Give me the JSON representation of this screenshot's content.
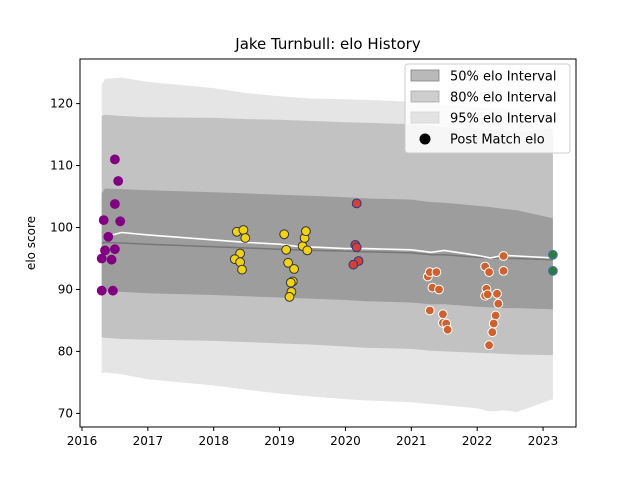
{
  "chart_data": {
    "type": "scatter",
    "title": "Jake Turnbull: elo History",
    "xlabel": "",
    "ylabel": "elo score",
    "xlim": [
      2015.97,
      2023.5
    ],
    "ylim": [
      67.8,
      127.2
    ],
    "xticks": [
      2016,
      2017,
      2018,
      2019,
      2020,
      2021,
      2022,
      2023
    ],
    "yticks": [
      70,
      80,
      90,
      100,
      110,
      120
    ],
    "grid": false,
    "legend_position": "top-right",
    "legend": [
      {
        "label": "50% elo Interval",
        "kind": "band",
        "color": "#7f7f7f",
        "opacity": 0.55
      },
      {
        "label": "80% elo Interval",
        "kind": "band",
        "color": "#a6a6a6",
        "opacity": 0.55
      },
      {
        "label": "95% elo Interval",
        "kind": "band",
        "color": "#d3d3d3",
        "opacity": 0.6
      },
      {
        "label": "Post Match elo",
        "kind": "marker",
        "color": "#000000"
      }
    ],
    "bands": {
      "x": [
        2016.3,
        2016.35,
        2016.6,
        2017.0,
        2018.0,
        2018.5,
        2019.0,
        2019.5,
        2020.0,
        2020.3,
        2021.0,
        2021.3,
        2021.5,
        2022.0,
        2022.2,
        2022.4,
        2022.6,
        2023.15
      ],
      "center": [
        97.5,
        97.6,
        97.5,
        97.3,
        96.9,
        96.7,
        96.5,
        96.3,
        96.2,
        96.1,
        95.9,
        95.6,
        95.6,
        95.2,
        95.1,
        95.0,
        95.0,
        94.8
      ],
      "p50_low": [
        89.5,
        89.7,
        89.6,
        89.4,
        89.1,
        88.9,
        88.7,
        88.5,
        88.3,
        88.1,
        87.9,
        87.6,
        87.6,
        87.2,
        87.1,
        87.0,
        87.0,
        86.8
      ],
      "p50_high": [
        105.5,
        106.3,
        106.2,
        106.0,
        105.7,
        105.5,
        105.3,
        105.1,
        104.9,
        104.7,
        104.5,
        104.1,
        104.0,
        103.5,
        103.3,
        103.0,
        102.8,
        101.5
      ],
      "p80_low": [
        82.3,
        82.2,
        82.0,
        81.9,
        81.7,
        81.5,
        81.3,
        81.1,
        80.8,
        80.6,
        80.4,
        80.1,
        80.0,
        79.8,
        79.7,
        79.6,
        79.5,
        79.4
      ],
      "p80_high": [
        118.0,
        118.2,
        118.0,
        117.8,
        117.7,
        117.5,
        117.4,
        117.2,
        117.0,
        116.9,
        116.7,
        116.4,
        116.2,
        116.0,
        115.8,
        115.6,
        115.4,
        116.0
      ],
      "p95_low": [
        76.5,
        76.6,
        76.3,
        75.5,
        74.5,
        73.8,
        73.2,
        72.7,
        72.3,
        72.1,
        71.8,
        71.5,
        71.3,
        70.8,
        70.3,
        70.5,
        70.2,
        72.3
      ],
      "p95_high": [
        123.0,
        124.0,
        124.2,
        123.5,
        122.5,
        121.7,
        121.2,
        120.8,
        120.7,
        120.6,
        120.3,
        120.1,
        119.8,
        119.5,
        119.3,
        119.2,
        119.0,
        118.5
      ]
    },
    "mean_line": {
      "color": "#ffffff",
      "x": [
        2016.35,
        2016.6,
        2017.0,
        2018.0,
        2018.5,
        2019.0,
        2019.3,
        2019.6,
        2020.0,
        2020.3,
        2021.0,
        2021.3,
        2021.5,
        2022.0,
        2022.2,
        2022.4,
        2022.6,
        2023.15
      ],
      "y": [
        98.5,
        99.2,
        98.8,
        98.0,
        97.6,
        97.3,
        96.9,
        96.8,
        96.6,
        96.6,
        96.4,
        96.0,
        96.3,
        95.5,
        95.1,
        95.5,
        95.4,
        95.1
      ]
    },
    "series": [
      {
        "color": "#800080",
        "edgecolor": "#800080",
        "points": [
          [
            2016.5,
            111
          ],
          [
            2016.55,
            107.5
          ],
          [
            2016.5,
            103.8
          ],
          [
            2016.58,
            101
          ],
          [
            2016.33,
            101.2
          ],
          [
            2016.4,
            98.5
          ],
          [
            2016.35,
            96.3
          ],
          [
            2016.5,
            96.5
          ],
          [
            2016.3,
            95
          ],
          [
            2016.45,
            94.8
          ],
          [
            2016.3,
            89.8
          ],
          [
            2016.47,
            89.8
          ]
        ]
      },
      {
        "color": "#f2d314",
        "edgecolor": "#333333",
        "points": [
          [
            2018.35,
            99.3
          ],
          [
            2018.45,
            99.6
          ],
          [
            2018.48,
            98.3
          ],
          [
            2018.4,
            95.8
          ],
          [
            2018.32,
            94.9
          ],
          [
            2018.4,
            94.4
          ],
          [
            2018.43,
            93.2
          ],
          [
            2019.07,
            98.9
          ],
          [
            2019.1,
            96.4
          ],
          [
            2019.13,
            94.3
          ],
          [
            2019.22,
            93.3
          ],
          [
            2019.2,
            91.3
          ],
          [
            2019.17,
            91.1
          ],
          [
            2019.18,
            89.6
          ],
          [
            2019.15,
            88.8
          ],
          [
            2019.35,
            97.0
          ],
          [
            2019.38,
            98.3
          ],
          [
            2019.4,
            99.4
          ],
          [
            2019.42,
            96.3
          ]
        ]
      },
      {
        "color": "#d43f3a",
        "edgecolor": "#2a3d7a",
        "points": [
          [
            2020.17,
            103.9
          ],
          [
            2020.15,
            97.2
          ],
          [
            2020.17,
            96.8
          ],
          [
            2020.2,
            94.6
          ],
          [
            2020.12,
            94.0
          ]
        ]
      },
      {
        "color": "#d0602e",
        "edgecolor": "#ffffff",
        "points": [
          [
            2021.25,
            92.1
          ],
          [
            2021.28,
            92.8
          ],
          [
            2021.38,
            92.8
          ],
          [
            2021.32,
            90.3
          ],
          [
            2021.42,
            90.0
          ],
          [
            2021.28,
            86.6
          ],
          [
            2021.48,
            86.0
          ],
          [
            2021.48,
            84.6
          ],
          [
            2021.53,
            84.5
          ],
          [
            2021.55,
            83.5
          ],
          [
            2022.12,
            93.7
          ],
          [
            2022.18,
            92.8
          ],
          [
            2022.14,
            90.1
          ],
          [
            2022.12,
            89.0
          ],
          [
            2022.16,
            89.2
          ],
          [
            2022.3,
            89.3
          ],
          [
            2022.32,
            87.7
          ],
          [
            2022.28,
            85.8
          ],
          [
            2022.25,
            84.5
          ],
          [
            2022.23,
            83.1
          ],
          [
            2022.18,
            81.0
          ],
          [
            2022.4,
            95.4
          ],
          [
            2022.4,
            93.0
          ]
        ]
      },
      {
        "color": "#2b7d3a",
        "edgecolor": "#4a6fb3",
        "points": [
          [
            2023.15,
            95.6
          ],
          [
            2023.15,
            93.0
          ]
        ]
      }
    ]
  }
}
